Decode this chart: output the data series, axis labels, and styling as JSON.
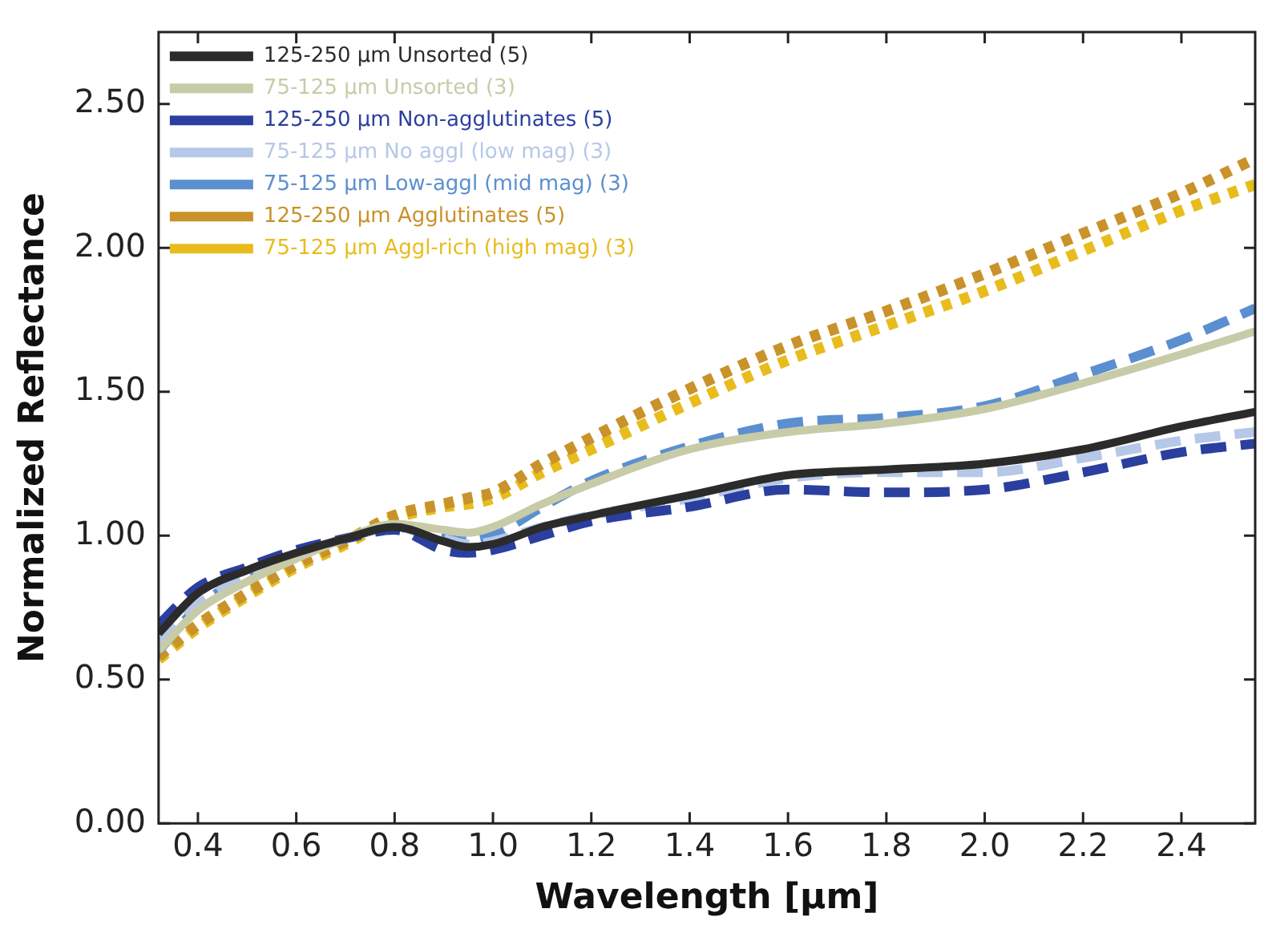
{
  "chart_data": {
    "type": "line",
    "xlabel": "Wavelength [μm]",
    "ylabel": "Normalized Reflectance",
    "x": [
      0.32,
      0.4,
      0.5,
      0.6,
      0.7,
      0.8,
      0.9,
      0.95,
      1.0,
      1.1,
      1.2,
      1.4,
      1.6,
      1.8,
      2.0,
      2.2,
      2.4,
      2.55
    ],
    "xlim": [
      0.32,
      2.55
    ],
    "xticks": [
      0.4,
      0.6,
      0.8,
      {
        "value": 1,
        "label": "1.0"
      },
      1.2,
      1.4,
      1.6,
      1.8,
      {
        "value": 2,
        "label": "2.0"
      },
      2.2,
      2.4
    ],
    "ylim": [
      0,
      2.75
    ],
    "yticks": [
      {
        "value": 0,
        "label": "0.00"
      },
      {
        "value": 0.5,
        "label": "0.50"
      },
      {
        "value": 1,
        "label": "1.00"
      },
      {
        "value": 1.5,
        "label": "1.50"
      },
      {
        "value": 2,
        "label": "2.00"
      },
      {
        "value": 2.5,
        "label": "2.50"
      }
    ],
    "grid": false,
    "legend": "top left",
    "marker": "none",
    "series": [
      {
        "name": "125-250 μm Unsorted (5)",
        "color": "#2b2b2b",
        "line_style": "solid",
        "values": [
          0.66,
          0.8,
          0.88,
          0.94,
          0.99,
          1.03,
          0.98,
          0.96,
          0.97,
          1.03,
          1.07,
          1.14,
          1.21,
          1.23,
          1.25,
          1.3,
          1.38,
          1.43
        ]
      },
      {
        "name": "75-125 μm Unsorted (3)",
        "color": "#c8cba8",
        "line_style": "solid",
        "values": [
          0.6,
          0.74,
          0.84,
          0.92,
          0.99,
          1.04,
          1.02,
          1.01,
          1.03,
          1.11,
          1.18,
          1.3,
          1.36,
          1.39,
          1.44,
          1.53,
          1.63,
          1.71
        ]
      },
      {
        "name": "125-250 μm Non-agglutinates (5)",
        "color": "#2b3f9e",
        "line_style": "dashed",
        "values": [
          0.69,
          0.82,
          0.89,
          0.95,
          0.99,
          1.02,
          0.95,
          0.94,
          0.95,
          1.0,
          1.05,
          1.1,
          1.16,
          1.15,
          1.16,
          1.22,
          1.29,
          1.32
        ]
      },
      {
        "name": "75-125 μm No aggl (low mag) (3)",
        "color": "#b6c8e8",
        "line_style": "dashed",
        "values": [
          0.62,
          0.76,
          0.86,
          0.93,
          0.99,
          1.03,
          0.99,
          0.97,
          0.98,
          1.03,
          1.07,
          1.13,
          1.2,
          1.22,
          1.22,
          1.27,
          1.33,
          1.36
        ]
      },
      {
        "name": "75-125 μm Low-aggl (mid mag) (3)",
        "color": "#5b8fd0",
        "line_style": "dashed",
        "values": [
          0.6,
          0.75,
          0.86,
          0.93,
          0.99,
          1.03,
          0.99,
          0.98,
          1.0,
          1.1,
          1.19,
          1.31,
          1.39,
          1.41,
          1.45,
          1.56,
          1.68,
          1.79
        ]
      },
      {
        "name": "125-250 μm Agglutinates (5)",
        "color": "#c9922a",
        "line_style": "dotted",
        "values": [
          0.58,
          0.69,
          0.8,
          0.9,
          0.98,
          1.07,
          1.11,
          1.13,
          1.15,
          1.25,
          1.34,
          1.51,
          1.66,
          1.78,
          1.91,
          2.05,
          2.19,
          2.31
        ]
      },
      {
        "name": "75-125 μm Aggl-rich (high mag) (3)",
        "color": "#e8bc1c",
        "line_style": "dotted",
        "values": [
          0.57,
          0.68,
          0.79,
          0.89,
          0.97,
          1.06,
          1.1,
          1.11,
          1.13,
          1.22,
          1.3,
          1.46,
          1.61,
          1.73,
          1.85,
          1.99,
          2.13,
          2.22
        ]
      }
    ]
  }
}
